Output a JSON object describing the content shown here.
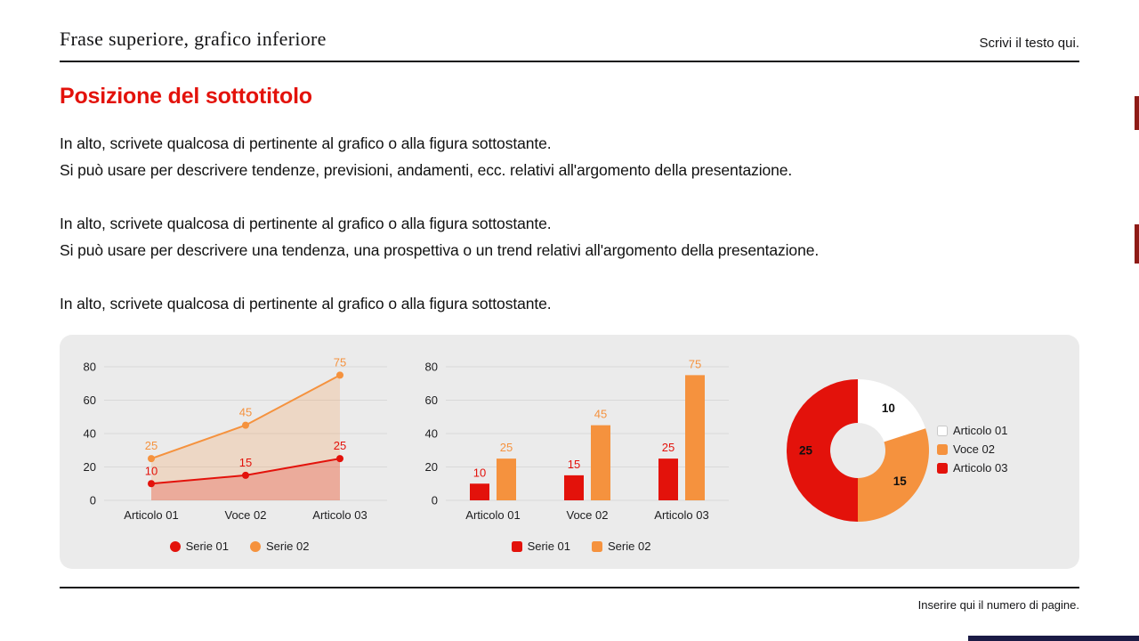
{
  "header": {
    "title": "Frase superiore, grafico inferiore",
    "note": "Scrivi il testo qui."
  },
  "subtitle": "Posizione del sottotitolo",
  "body": {
    "p1_l1": "In alto, scrivete qualcosa di pertinente al grafico o alla figura sottostante.",
    "p1_l2": "Si può usare per descrivere tendenze, previsioni, andamenti, ecc. relativi all'argomento della presentazione.",
    "p2_l1": "In alto, scrivete qualcosa di pertinente al grafico o alla figura sottostante.",
    "p2_l2": "Si può usare per descrivere una tendenza, una prospettiva o un trend relativi all'argomento della presentazione.",
    "p3_l1": "In alto, scrivete qualcosa di pertinente al grafico o alla figura sottostante."
  },
  "footer": {
    "note": "Inserire qui il numero di pagine."
  },
  "colors": {
    "red": "#e3120b",
    "orange": "#f5923e",
    "white": "#ffffff",
    "text": "#141416",
    "panel": "#ebebeb",
    "grid": "#d9d9d9",
    "edge_mark": "#8e1b16",
    "bottom_bar": "#1b1b45"
  },
  "chart_data": [
    {
      "type": "line",
      "categories": [
        "Articolo 01",
        "Voce 02",
        "Articolo 03"
      ],
      "series": [
        {
          "name": "Serie 01",
          "color": "#e3120b",
          "values": [
            10,
            15,
            25
          ]
        },
        {
          "name": "Serie 02",
          "color": "#f5923e",
          "values": [
            25,
            45,
            75
          ]
        }
      ],
      "ylim": [
        0,
        80
      ],
      "yticks": [
        0,
        20,
        40,
        60,
        80
      ],
      "area_fill": true,
      "data_labels": true,
      "grid": true,
      "legend_position": "bottom"
    },
    {
      "type": "bar",
      "categories": [
        "Articolo 01",
        "Voce 02",
        "Articolo 03"
      ],
      "series": [
        {
          "name": "Serie 01",
          "color": "#e3120b",
          "values": [
            10,
            15,
            25
          ]
        },
        {
          "name": "Serie 02",
          "color": "#f5923e",
          "values": [
            25,
            45,
            75
          ]
        }
      ],
      "ylim": [
        0,
        80
      ],
      "yticks": [
        0,
        20,
        40,
        60,
        80
      ],
      "data_labels": true,
      "grid": true,
      "legend_position": "bottom"
    },
    {
      "type": "pie",
      "donut": true,
      "slices": [
        {
          "label": "Articolo 01",
          "value": 10,
          "color": "#ffffff"
        },
        {
          "label": "Voce 02",
          "value": 15,
          "color": "#f5923e"
        },
        {
          "label": "Articolo 03",
          "value": 25,
          "color": "#e3120b"
        }
      ],
      "data_labels": true,
      "legend_position": "right"
    }
  ]
}
